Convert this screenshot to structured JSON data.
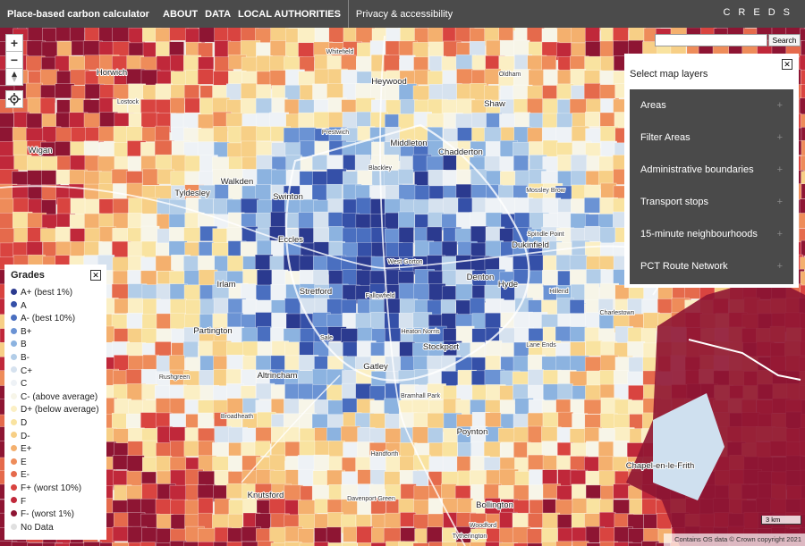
{
  "nav": {
    "brand": "Place-based carbon calculator",
    "links": [
      "ABOUT",
      "DATA",
      "LOCAL AUTHORITIES",
      "Privacy & accessibility"
    ],
    "logo": "CREDS"
  },
  "map_controls": {
    "zoom_in": "+",
    "zoom_out": "−"
  },
  "search": {
    "button": "Search"
  },
  "layers_panel": {
    "title": "Select map layers",
    "items": [
      "Areas",
      "Filter Areas",
      "Administrative boundaries",
      "Transport stops",
      "15-minute neighbourhoods",
      "PCT Route Network"
    ]
  },
  "legend": {
    "title": "Grades",
    "items": [
      {
        "label": "A+ (best 1%)",
        "color": "#2b3a8f"
      },
      {
        "label": "A",
        "color": "#3550a8"
      },
      {
        "label": "A- (best 10%)",
        "color": "#4a6fc0"
      },
      {
        "label": "B+",
        "color": "#6b93d4"
      },
      {
        "label": "B",
        "color": "#8cb3e0"
      },
      {
        "label": "B-",
        "color": "#b2cde8"
      },
      {
        "label": "C+",
        "color": "#d6e2ef"
      },
      {
        "label": "C",
        "color": "#eef2f6"
      },
      {
        "label": "C- (above average)",
        "color": "#f7f5e8"
      },
      {
        "label": "D+ (below average)",
        "color": "#fbefc4"
      },
      {
        "label": "D",
        "color": "#f9e3a0"
      },
      {
        "label": "D-",
        "color": "#f7cf86"
      },
      {
        "label": "E+",
        "color": "#f4b06e"
      },
      {
        "label": "E",
        "color": "#ee8c5a"
      },
      {
        "label": "E-",
        "color": "#e56a4c"
      },
      {
        "label": "F+ (worst 10%)",
        "color": "#d94440"
      },
      {
        "label": "F",
        "color": "#c0283a"
      },
      {
        "label": "F- (worst 1%)",
        "color": "#8e1533"
      },
      {
        "label": "No Data",
        "color": "#e0e0e0"
      }
    ]
  },
  "places": [
    "Horwich",
    "Lostock",
    "Wigan",
    "Tyldesley",
    "Walkden",
    "Swinton",
    "Eccles",
    "Irlam",
    "Partington",
    "Stretford",
    "Altrincham",
    "Knutsford",
    "Heywood",
    "Middleton",
    "Chadderton",
    "Shaw",
    "Denton",
    "Hyde",
    "Dukinfield",
    "Stockport",
    "Gatley",
    "Poynton",
    "Bollington",
    "Chapel-en-le-Frith",
    "Rushgreen",
    "Woodford",
    "Bramhall Park",
    "Heaton Norris",
    "Fallowfield",
    "West Gorton",
    "Blackley",
    "Prestwich",
    "Whitefield",
    "Oldham",
    "Mossley Brow",
    "Spindle Point",
    "Hillend",
    "Charlestown",
    "Lane Ends",
    "Handforth",
    "Sale",
    "Broadheath",
    "Davenport Green",
    "Tytherington"
  ],
  "scale": "3 km",
  "attribution": "Contains OS data © Crown copyright 2021"
}
